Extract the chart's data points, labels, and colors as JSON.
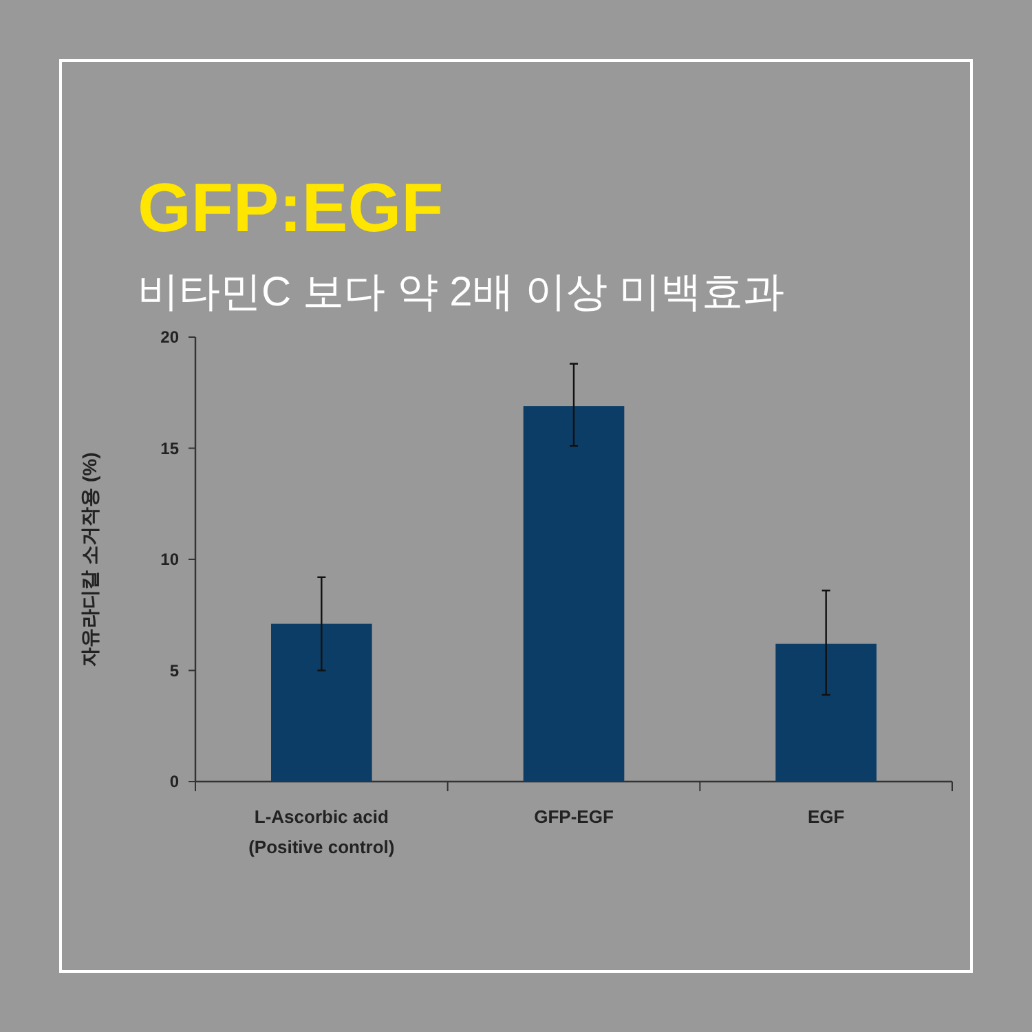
{
  "chart_data": {
    "type": "bar",
    "title": "GFP:EGF",
    "subtitle": "비타민C 보다 약 2배 이상 미백효과",
    "ylabel": "자유라디칼 소거작용 (%)",
    "categories": [
      "L-Ascorbic acid\n(Positive control)",
      "GFP-EGF",
      "EGF"
    ],
    "values": [
      7.1,
      16.9,
      6.2
    ],
    "color": "#0c3d66",
    "errors": [
      [
        5.0,
        9.2
      ],
      [
        15.1,
        18.8
      ],
      [
        3.9,
        8.6
      ]
    ],
    "ylim": [
      0,
      20
    ],
    "yticks": [
      0,
      5,
      10,
      15,
      20
    ],
    "grid": false
  }
}
